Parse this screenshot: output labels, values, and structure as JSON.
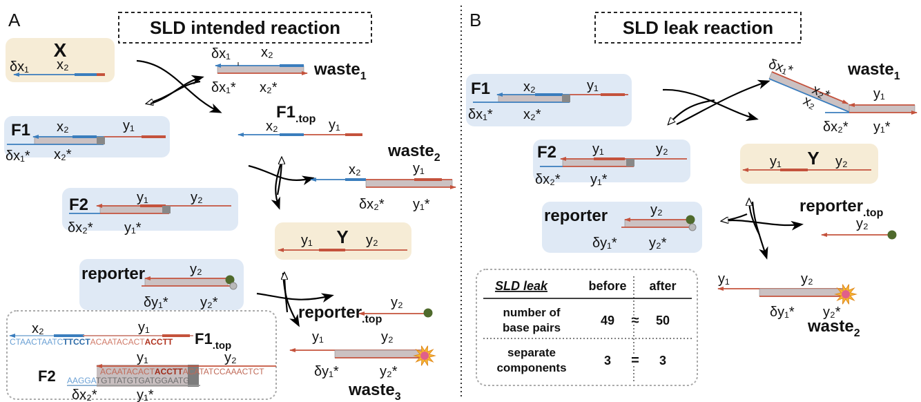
{
  "panel_a": {
    "letter": "A",
    "title": "SLD intended reaction",
    "species": [
      {
        "name": "X",
        "labels": [
          "δx₁",
          "x₂"
        ]
      },
      {
        "name": "waste",
        "sub": "1",
        "labels": [
          "δx₁",
          "x₂",
          "δx₁*",
          "x₂*"
        ]
      },
      {
        "name": "F1",
        "labels": [
          "x₂",
          "y₁",
          "δx₁*",
          "x₂*"
        ]
      },
      {
        "name": "F1",
        "sub": ".top",
        "labels": [
          "x₂",
          "y₁"
        ]
      },
      {
        "name": "waste",
        "sub": "2",
        "labels": [
          "x₂",
          "y₁",
          "δx₂*",
          "y₁*"
        ]
      },
      {
        "name": "F2",
        "labels": [
          "y₁",
          "y₂",
          "δx₂*",
          "y₁*"
        ]
      },
      {
        "name": "Y",
        "labels": [
          "y₁",
          "y₂"
        ]
      },
      {
        "name": "reporter",
        "labels": [
          "y₂",
          "δy₁*",
          "y₂*"
        ]
      },
      {
        "name": "reporter",
        "sub": ".top",
        "labels": [
          "y₂"
        ]
      },
      {
        "name": "waste",
        "sub": "3",
        "labels": [
          "y₁",
          "y₂",
          "δy₁*",
          "y₂*"
        ]
      }
    ],
    "sequences": {
      "top_name": {
        "name": "F1",
        "sub": ".top"
      },
      "top_labels": [
        "x₂",
        "y₁"
      ],
      "top_strand": [
        "CTAACTAATC",
        "TTCCT",
        "ACAATACACT",
        "ACCTT"
      ],
      "f2_name": {
        "name": "F2"
      },
      "f2_labels": [
        "y₁",
        "y₂"
      ],
      "f2_top": [
        "ACAATACACT",
        "ACCTT",
        "ACATATCCAAACTCT"
      ],
      "f2_bottom": [
        "AAGGA",
        "TGTTATGTGATGGAATG"
      ],
      "f2_bottom_labels": [
        "δx₂*",
        "y₁*"
      ]
    }
  },
  "panel_b": {
    "letter": "B",
    "title": "SLD leak reaction",
    "species": [
      {
        "name": "F1",
        "labels": [
          "x₂",
          "y₁",
          "δx₁*",
          "x₂*"
        ]
      },
      {
        "name": "F2",
        "labels": [
          "y₁",
          "y₂",
          "δx₂*",
          "y₁*"
        ]
      },
      {
        "name": "reporter",
        "labels": [
          "y₂",
          "δy₁*",
          "y₂*"
        ]
      },
      {
        "name": "waste",
        "sub": "1",
        "labels": [
          "δx₁*",
          "x₂*",
          "x₂",
          "y₁",
          "δx₂*",
          "y₁*"
        ]
      },
      {
        "name": "Y",
        "labels": [
          "y₁",
          "y₂"
        ]
      },
      {
        "name": "reporter",
        "sub": ".top",
        "labels": [
          "y₂"
        ]
      },
      {
        "name": "waste",
        "sub": "2",
        "labels": [
          "y₁",
          "y₂",
          "δy₁*",
          "y₂*"
        ]
      }
    ],
    "table": {
      "header": [
        "SLD leak",
        "before",
        "after"
      ],
      "rows": [
        {
          "label": [
            "number of",
            "base pairs"
          ],
          "before": 49,
          "relation": "≈",
          "after": 50
        },
        {
          "label": [
            "separate",
            "components"
          ],
          "before": 3,
          "relation": "=",
          "after": 3
        }
      ]
    }
  }
}
